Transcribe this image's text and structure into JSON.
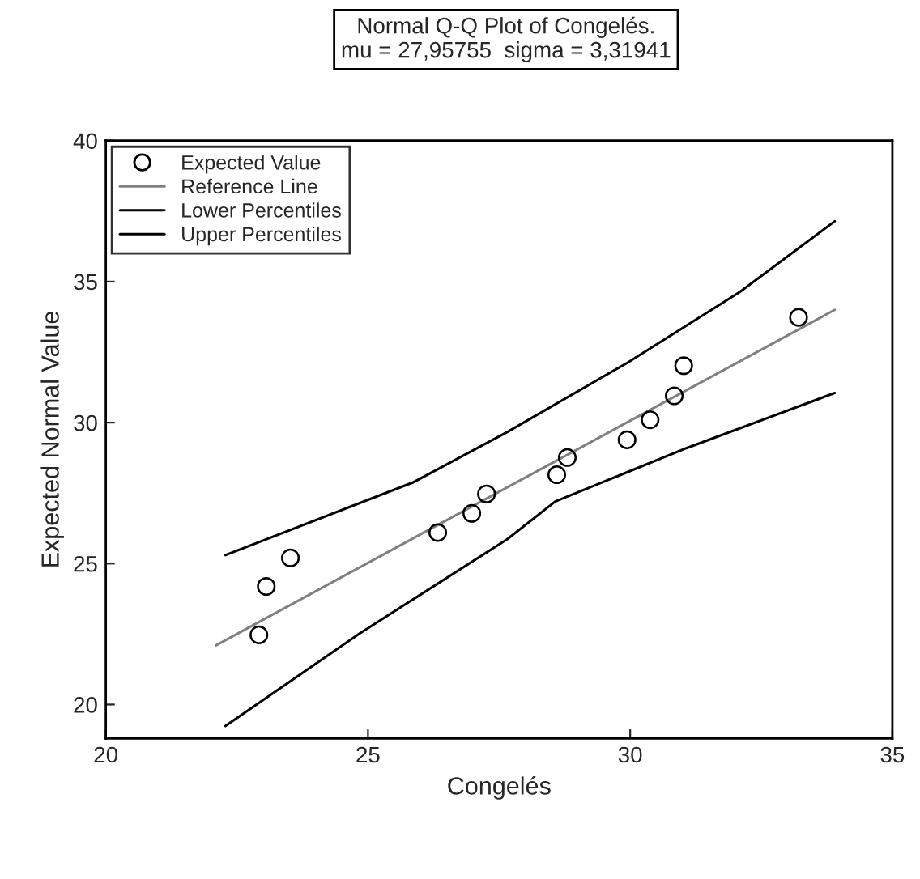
{
  "chart_data": {
    "type": "line",
    "title": "Normal Q-Q Plot of Congelés.",
    "subtitle": "mu = 27,95755  sigma = 3,31941",
    "xlabel": "Congelés",
    "ylabel": "Expected Normal Value",
    "xlim": [
      20,
      35
    ],
    "ylim": [
      18.8,
      40
    ],
    "xticks": [
      20,
      25,
      30,
      35
    ],
    "yticks": [
      20,
      25,
      30,
      35,
      40
    ],
    "legend": "top left",
    "grid": false,
    "series": [
      {
        "name": "Expected Value",
        "type": "scatter",
        "marker": "circle",
        "color": "#000000",
        "x": [
          22.92,
          23.06,
          23.52,
          26.33,
          26.98,
          27.26,
          28.6,
          28.8,
          29.94,
          30.38,
          30.84,
          31.02,
          33.21
        ],
        "values": [
          22.47,
          24.19,
          25.2,
          26.1,
          26.78,
          27.47,
          28.15,
          28.76,
          29.39,
          30.1,
          30.95,
          32.02,
          33.73
        ]
      },
      {
        "name": "Reference Line",
        "color": "#808080",
        "x": [
          22.1,
          33.9
        ],
        "values": [
          22.1,
          34.0
        ]
      },
      {
        "name": "Lower Percentiles",
        "color": "#000000",
        "x": [
          22.28,
          24.85,
          27.66,
          28.57,
          31.08,
          33.9
        ],
        "values": [
          19.24,
          22.53,
          25.87,
          27.2,
          29.1,
          31.05
        ]
      },
      {
        "name": "Upper Percentiles",
        "color": "#000000",
        "x": [
          22.28,
          25.85,
          27.66,
          29.97,
          32.09,
          33.9
        ],
        "values": [
          25.3,
          27.87,
          29.67,
          32.15,
          34.63,
          37.14
        ]
      }
    ]
  }
}
